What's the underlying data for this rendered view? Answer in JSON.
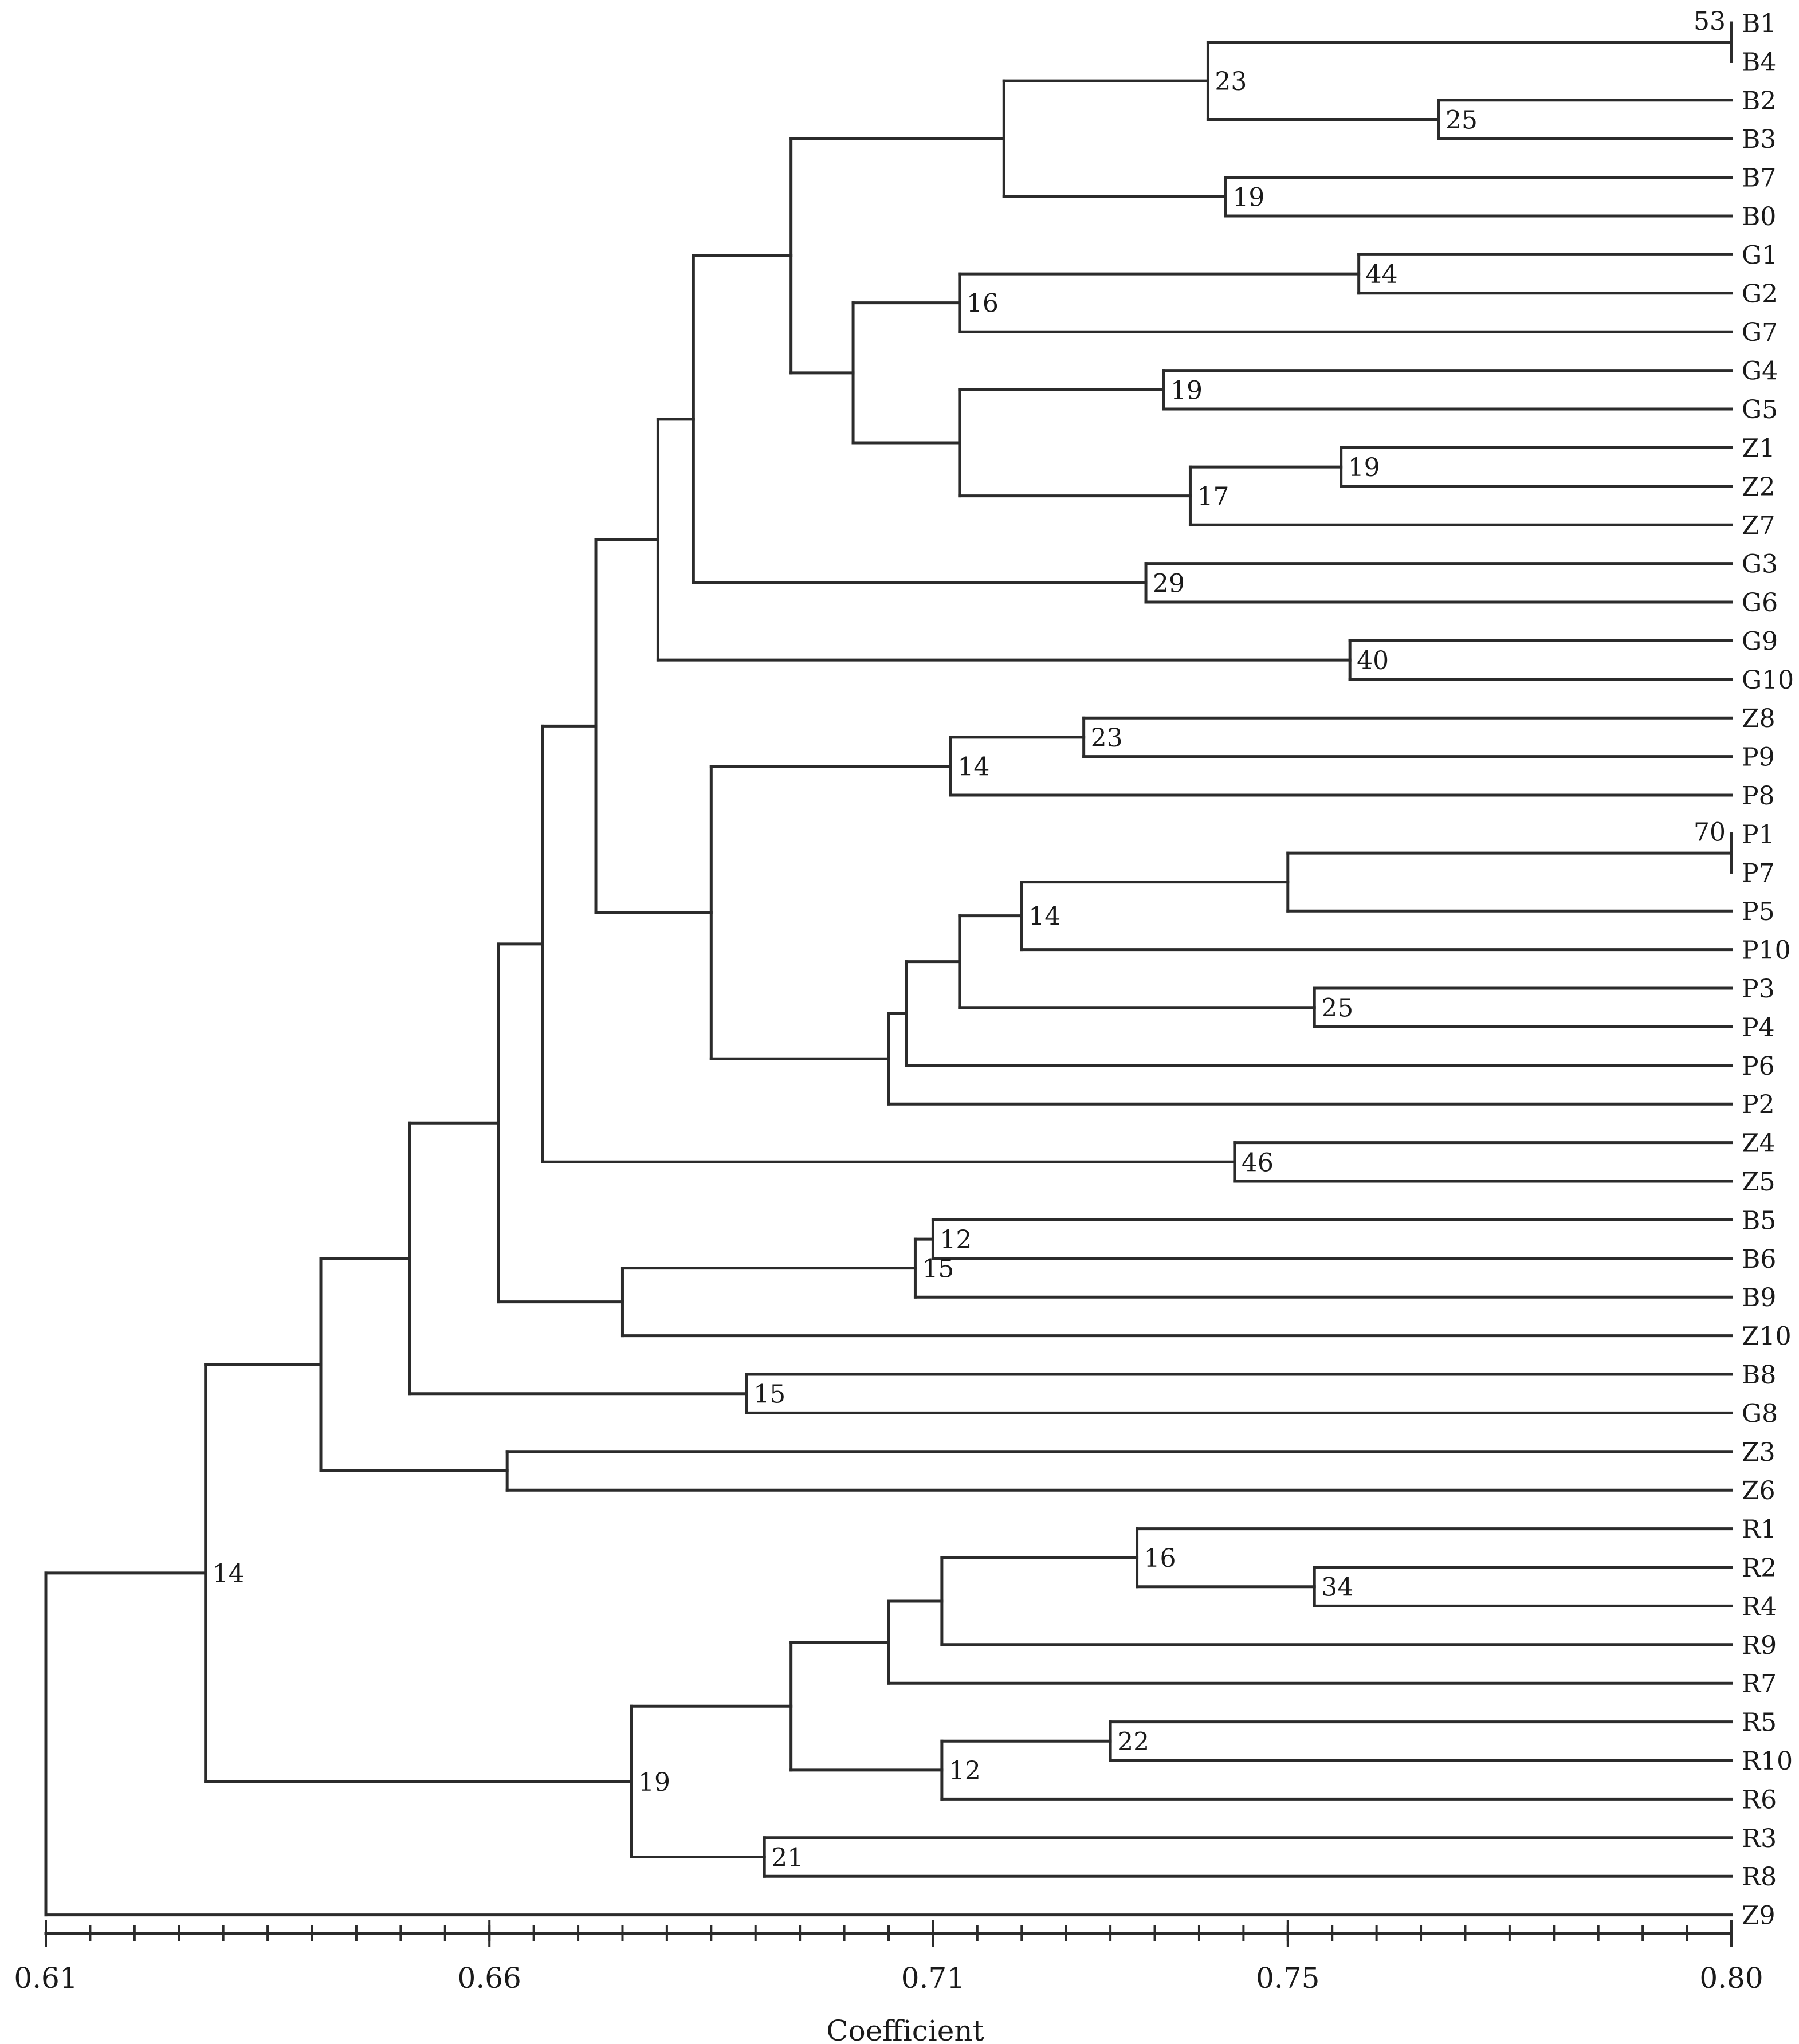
{
  "axis": {
    "min": 0.61,
    "max": 0.8,
    "ticks": [
      "0.61",
      "0.66",
      "0.71",
      "0.75",
      "0.80"
    ],
    "tick_values": [
      0.61,
      0.66,
      0.71,
      0.75,
      0.8
    ],
    "title": "Coefficient",
    "minor_step": 0.005
  },
  "leaves": [
    "B1",
    "B4",
    "B2",
    "B3",
    "B7",
    "B0",
    "G1",
    "G2",
    "G7",
    "G4",
    "G5",
    "Z1",
    "Z2",
    "Z7",
    "G3",
    "G6",
    "G9",
    "G10",
    "Z8",
    "P9",
    "P8",
    "P1",
    "P7",
    "P5",
    "P10",
    "P3",
    "P4",
    "P6",
    "P2",
    "Z4",
    "Z5",
    "B5",
    "B6",
    "B9",
    "Z10",
    "B8",
    "G8",
    "Z3",
    "Z6",
    "R1",
    "R2",
    "R4",
    "R9",
    "R7",
    "R5",
    "R10",
    "R6",
    "R3",
    "R8",
    "Z9"
  ],
  "clusters": [
    {
      "id": "n1",
      "children": [
        "B1",
        "B4"
      ],
      "height": 0.8,
      "bootstrap": "53"
    },
    {
      "id": "n2",
      "children": [
        "B2",
        "B3"
      ],
      "height": 0.767,
      "bootstrap": "25"
    },
    {
      "id": "n3",
      "children": [
        "n1",
        "n2"
      ],
      "height": 0.741,
      "bootstrap": "23"
    },
    {
      "id": "n4",
      "children": [
        "B7",
        "B0"
      ],
      "height": 0.743,
      "bootstrap": "19"
    },
    {
      "id": "n5",
      "children": [
        "n3",
        "n4"
      ],
      "height": 0.718,
      "bootstrap": ""
    },
    {
      "id": "n6",
      "children": [
        "G1",
        "G2"
      ],
      "height": 0.758,
      "bootstrap": "44"
    },
    {
      "id": "n7",
      "children": [
        "n6",
        "G7"
      ],
      "height": 0.713,
      "bootstrap": "16"
    },
    {
      "id": "n8",
      "children": [
        "G4",
        "G5"
      ],
      "height": 0.736,
      "bootstrap": "19"
    },
    {
      "id": "n9",
      "children": [
        "Z1",
        "Z2"
      ],
      "height": 0.756,
      "bootstrap": "19"
    },
    {
      "id": "n10",
      "children": [
        "n9",
        "Z7"
      ],
      "height": 0.739,
      "bootstrap": "17"
    },
    {
      "id": "n11",
      "children": [
        "n8",
        "n10"
      ],
      "height": 0.713,
      "bootstrap": ""
    },
    {
      "id": "n12",
      "children": [
        "n7",
        "n11"
      ],
      "height": 0.701,
      "bootstrap": ""
    },
    {
      "id": "n13",
      "children": [
        "n5",
        "n12"
      ],
      "height": 0.694,
      "bootstrap": ""
    },
    {
      "id": "n14",
      "children": [
        "G3",
        "G6"
      ],
      "height": 0.734,
      "bootstrap": "29"
    },
    {
      "id": "n15",
      "children": [
        "n13",
        "n14"
      ],
      "height": 0.683,
      "bootstrap": ""
    },
    {
      "id": "n16",
      "children": [
        "G9",
        "G10"
      ],
      "height": 0.757,
      "bootstrap": "40"
    },
    {
      "id": "n17",
      "children": [
        "n15",
        "n16"
      ],
      "height": 0.679,
      "bootstrap": ""
    },
    {
      "id": "n18",
      "children": [
        "Z8",
        "P9"
      ],
      "height": 0.727,
      "bootstrap": "23"
    },
    {
      "id": "n19",
      "children": [
        "n18",
        "P8"
      ],
      "height": 0.712,
      "bootstrap": "14"
    },
    {
      "id": "n20",
      "children": [
        "P1",
        "P7"
      ],
      "height": 0.8,
      "bootstrap": "70"
    },
    {
      "id": "n21",
      "children": [
        "n20",
        "P5"
      ],
      "height": 0.75,
      "bootstrap": ""
    },
    {
      "id": "n22",
      "children": [
        "n21",
        "P10"
      ],
      "height": 0.72,
      "bootstrap": "14"
    },
    {
      "id": "n23",
      "children": [
        "P3",
        "P4"
      ],
      "height": 0.753,
      "bootstrap": "25"
    },
    {
      "id": "n24",
      "children": [
        "n22",
        "n23"
      ],
      "height": 0.713,
      "bootstrap": ""
    },
    {
      "id": "n25",
      "children": [
        "n24",
        "P6"
      ],
      "height": 0.707,
      "bootstrap": ""
    },
    {
      "id": "n26",
      "children": [
        "n25",
        "P2"
      ],
      "height": 0.705,
      "bootstrap": ""
    },
    {
      "id": "n27",
      "children": [
        "n19",
        "n26"
      ],
      "height": 0.685,
      "bootstrap": ""
    },
    {
      "id": "n28",
      "children": [
        "n17",
        "n27"
      ],
      "height": 0.672,
      "bootstrap": ""
    },
    {
      "id": "n29",
      "children": [
        "Z4",
        "Z5"
      ],
      "height": 0.744,
      "bootstrap": "46"
    },
    {
      "id": "n30",
      "children": [
        "n28",
        "n29"
      ],
      "height": 0.666,
      "bootstrap": ""
    },
    {
      "id": "n31",
      "children": [
        "B5",
        "B6"
      ],
      "height": 0.71,
      "bootstrap": "12"
    },
    {
      "id": "n32",
      "children": [
        "n31",
        "B9"
      ],
      "height": 0.708,
      "bootstrap": "15"
    },
    {
      "id": "n33",
      "children": [
        "n32",
        "Z10"
      ],
      "height": 0.675,
      "bootstrap": ""
    },
    {
      "id": "n34",
      "children": [
        "n30",
        "n33"
      ],
      "height": 0.661,
      "bootstrap": ""
    },
    {
      "id": "n35",
      "children": [
        "B8",
        "G8"
      ],
      "height": 0.689,
      "bootstrap": "15"
    },
    {
      "id": "n36",
      "children": [
        "n34",
        "n35"
      ],
      "height": 0.651,
      "bootstrap": ""
    },
    {
      "id": "n37",
      "children": [
        "Z3",
        "Z6"
      ],
      "height": 0.662,
      "bootstrap": ""
    },
    {
      "id": "n38",
      "children": [
        "n36",
        "n37"
      ],
      "height": 0.641,
      "bootstrap": ""
    },
    {
      "id": "n39",
      "children": [
        "R2",
        "R4"
      ],
      "height": 0.753,
      "bootstrap": "34"
    },
    {
      "id": "n40",
      "children": [
        "R1",
        "n39"
      ],
      "height": 0.733,
      "bootstrap": "16"
    },
    {
      "id": "n41",
      "children": [
        "n40",
        "R9"
      ],
      "height": 0.711,
      "bootstrap": ""
    },
    {
      "id": "n42",
      "children": [
        "n41",
        "R7"
      ],
      "height": 0.705,
      "bootstrap": ""
    },
    {
      "id": "n43",
      "children": [
        "R5",
        "R10"
      ],
      "height": 0.73,
      "bootstrap": "22"
    },
    {
      "id": "n44",
      "children": [
        "n43",
        "R6"
      ],
      "height": 0.711,
      "bootstrap": "12"
    },
    {
      "id": "n45",
      "children": [
        "n42",
        "n44"
      ],
      "height": 0.694,
      "bootstrap": ""
    },
    {
      "id": "n46",
      "children": [
        "R3",
        "R8"
      ],
      "height": 0.691,
      "bootstrap": "21"
    },
    {
      "id": "n47",
      "children": [
        "n45",
        "n46"
      ],
      "height": 0.676,
      "bootstrap": "19"
    },
    {
      "id": "n48",
      "children": [
        "n38",
        "n47"
      ],
      "height": 0.628,
      "bootstrap": "14"
    },
    {
      "id": "n49",
      "children": [
        "n48",
        "Z9"
      ],
      "height": 0.61,
      "bootstrap": ""
    }
  ]
}
